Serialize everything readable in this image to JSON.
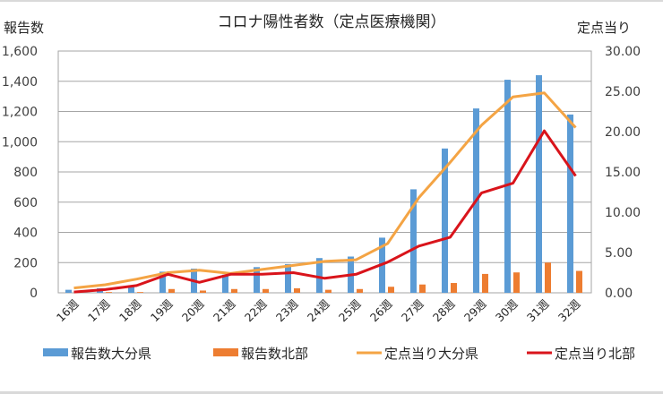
{
  "chart_data": {
    "type": "bar",
    "title": "コロナ陽性者数（定点医療機関）",
    "ylabel": "報告数",
    "y2label": "定点当り",
    "xlabel": "",
    "categories": [
      "16週",
      "17週",
      "18週",
      "19週",
      "20週",
      "21週",
      "22週",
      "23週",
      "24週",
      "25週",
      "26週",
      "27週",
      "28週",
      "29週",
      "30週",
      "31週",
      "32週"
    ],
    "ylim": [
      0,
      1600
    ],
    "yticks": [
      "0",
      "200",
      "400",
      "600",
      "800",
      "1,000",
      "1,200",
      "1,400",
      "1,600"
    ],
    "ytick_values": [
      0,
      200,
      400,
      600,
      800,
      1000,
      1200,
      1400,
      1600
    ],
    "y2lim": [
      0,
      30
    ],
    "y2ticks": [
      "0.00",
      "5.00",
      "10.00",
      "15.00",
      "20.00",
      "25.00",
      "30.00"
    ],
    "y2tick_values": [
      0,
      5,
      10,
      15,
      20,
      25,
      30
    ],
    "grid": true,
    "legend_position": "bottom",
    "series": [
      {
        "name": "報告数大分県",
        "type": "bar",
        "axis": "left",
        "color": "#5b9bd5",
        "values": [
          20,
          30,
          50,
          140,
          160,
          120,
          170,
          190,
          230,
          240,
          365,
          685,
          955,
          1220,
          1410,
          1440,
          1180
        ]
      },
      {
        "name": "報告数北部",
        "type": "bar",
        "axis": "left",
        "color": "#ed7d31",
        "values": [
          2,
          5,
          5,
          25,
          15,
          25,
          25,
          30,
          20,
          25,
          40,
          55,
          65,
          125,
          135,
          200,
          145
        ]
      },
      {
        "name": "定点当り大分県",
        "type": "line",
        "axis": "right",
        "color": "#f4a444",
        "values": [
          0.6,
          1.0,
          1.7,
          2.5,
          2.8,
          2.4,
          2.9,
          3.4,
          3.9,
          4.1,
          6.1,
          11.8,
          16.2,
          20.8,
          24.3,
          24.8,
          20.5
        ]
      },
      {
        "name": "定点当り北部",
        "type": "line",
        "axis": "right",
        "color": "#d9141b",
        "values": [
          0.1,
          0.4,
          0.9,
          2.3,
          1.3,
          2.3,
          2.3,
          2.5,
          1.8,
          2.3,
          3.8,
          5.8,
          6.9,
          12.4,
          13.6,
          20.1,
          14.5
        ]
      }
    ]
  }
}
